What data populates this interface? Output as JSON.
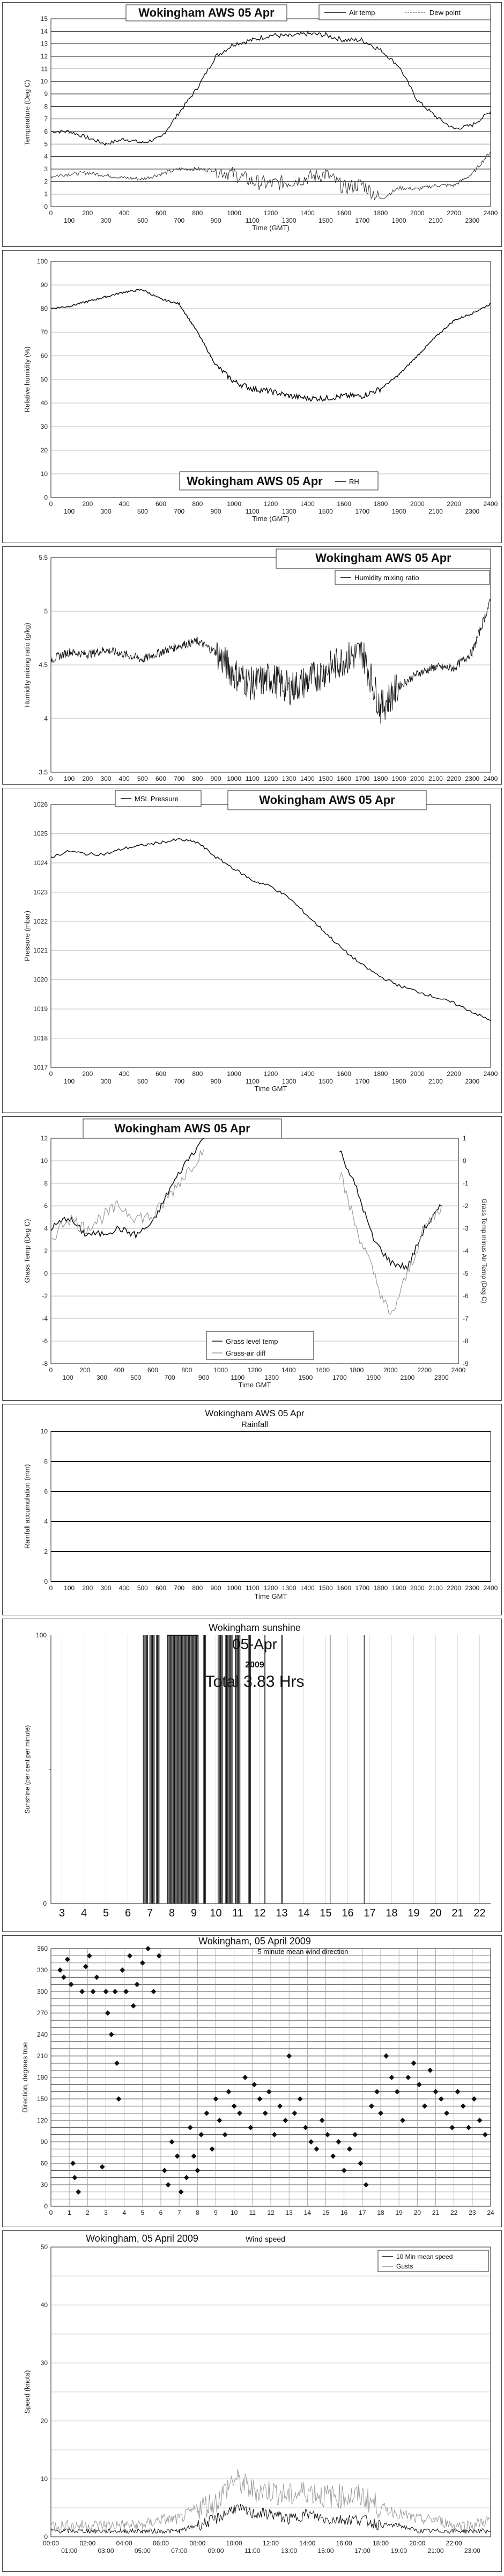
{
  "panels": {
    "temp": {
      "title": "Wokingham AWS 05 Apr",
      "legend": [
        "Air temp",
        "Dew point"
      ],
      "ylabel": "Temperature (Deg C)",
      "xlabel": "Time (GMT)"
    },
    "rh": {
      "title": "Wokingham AWS 05 Apr",
      "legend": [
        "RH"
      ],
      "ylabel": "Relative humidity (%)",
      "xlabel": "Time (GMT)"
    },
    "mix": {
      "title": "Wokingham AWS 05 Apr",
      "legend": [
        "Humidity mixing ratio"
      ],
      "ylabel": "Humidity mixing ratio (g/kg)",
      "xlabel": ""
    },
    "pres": {
      "title": "Wokingham AWS 05 Apr",
      "legend": [
        "MSL Pressure"
      ],
      "ylabel": "Pressure (mbar)",
      "xlabel": "Time GMT"
    },
    "grass": {
      "title": "Wokingham AWS 05 Apr",
      "legend": [
        "Grass level temp",
        "Grass-air diff"
      ],
      "ylabel": "Grass Temp (Deg C)",
      "ylabel2": "Grass Temp minus Air Temp (Deg C)",
      "xlabel": "Time GMT"
    },
    "rain": {
      "title": "Wokingham AWS 05 Apr",
      "subtitle": "Rainfall",
      "ylabel": "Rainfall accumulation (mm)",
      "xlabel": "Time GMT"
    },
    "sun": {
      "title": "Wokingham sunshine",
      "date": "05-Apr",
      "year": "2009",
      "total": "Total 3.83 Hrs",
      "ylabel": "Sunshine (per cent per minute)",
      "xlabel": ""
    },
    "wdir": {
      "title": "Wokingham,  05 April 2009",
      "subtitle": "5 minute mean wind direction",
      "ylabel": "Direction, degrees true",
      "xlabel": ""
    },
    "wspd": {
      "title": "Wokingham,  05 April 2009",
      "subtitle": "Wind speed",
      "legend": [
        "10 Min mean speed",
        "Gusts"
      ],
      "ylabel": "Speed (knots)",
      "xlabel": ""
    }
  },
  "chart_data": [
    {
      "type": "line",
      "title": "Wokingham AWS 05 Apr",
      "xlabel": "Time (GMT)",
      "ylabel": "Temperature (Deg C)",
      "xlim": [
        0,
        2400
      ],
      "ylim": [
        0,
        15
      ],
      "xticks": [
        "100",
        "300",
        "500",
        "700",
        "900",
        "1100",
        "1300",
        "1500",
        "1700",
        "1900",
        "2100",
        "2300",
        "0",
        "200",
        "400",
        "600",
        "800",
        "1000",
        "1200",
        "1400",
        "1600",
        "1800",
        "2000",
        "2200",
        "2400"
      ],
      "x": [
        0,
        100,
        200,
        300,
        400,
        500,
        600,
        700,
        800,
        900,
        1000,
        1100,
        1200,
        1300,
        1400,
        1500,
        1600,
        1700,
        1800,
        1900,
        2000,
        2100,
        2200,
        2300,
        2400
      ],
      "series": [
        {
          "name": "Air temp",
          "values": [
            6,
            6,
            5.5,
            5,
            5.4,
            5.1,
            5.5,
            7.5,
            9.5,
            12,
            13,
            13.3,
            13.7,
            13.6,
            13.8,
            13.7,
            13.3,
            13.3,
            12.5,
            11.2,
            8.5,
            7.2,
            6.2,
            6.5,
            7.6
          ]
        },
        {
          "name": "Dew point",
          "values": [
            2.4,
            2.6,
            2.7,
            2.5,
            2.3,
            2.2,
            2.6,
            3.0,
            3.0,
            2.9,
            2.6,
            2.0,
            1.8,
            2.0,
            2.3,
            2.6,
            1.5,
            1.8,
            0.6,
            1.5,
            1.4,
            1.7,
            1.7,
            2.6,
            4.4
          ]
        }
      ]
    },
    {
      "type": "line",
      "title": "Wokingham AWS 05 Apr",
      "xlabel": "Time (GMT)",
      "ylabel": "Relative humidity (%)",
      "xlim": [
        0,
        2400
      ],
      "ylim": [
        0,
        100
      ],
      "x": [
        0,
        100,
        200,
        300,
        400,
        500,
        600,
        700,
        800,
        900,
        1000,
        1100,
        1200,
        1300,
        1400,
        1500,
        1600,
        1700,
        1800,
        1900,
        2000,
        2100,
        2200,
        2300,
        2400
      ],
      "series": [
        {
          "name": "RH",
          "values": [
            80,
            81,
            83,
            85,
            87,
            88,
            84,
            82,
            70,
            56,
            49,
            46,
            45,
            43,
            42,
            42,
            43,
            43,
            46,
            52,
            60,
            68,
            75,
            78,
            82
          ]
        }
      ]
    },
    {
      "type": "line",
      "title": "Wokingham AWS 05 Apr",
      "ylabel": "Humidity mixing ratio (g/kg)",
      "xlim": [
        0,
        2400
      ],
      "ylim": [
        3.5,
        5.5
      ],
      "x": [
        0,
        100,
        200,
        300,
        400,
        500,
        600,
        700,
        800,
        900,
        1000,
        1100,
        1200,
        1300,
        1400,
        1500,
        1600,
        1700,
        1800,
        1900,
        2000,
        2100,
        2200,
        2300,
        2400
      ],
      "series": [
        {
          "name": "Humidity mixing ratio",
          "values": [
            4.55,
            4.62,
            4.6,
            4.64,
            4.6,
            4.55,
            4.62,
            4.68,
            4.72,
            4.62,
            4.42,
            4.32,
            4.38,
            4.28,
            4.35,
            4.45,
            4.55,
            4.62,
            4.1,
            4.3,
            4.42,
            4.48,
            4.47,
            4.62,
            5.1
          ]
        }
      ]
    },
    {
      "type": "line",
      "title": "Wokingham AWS 05 Apr",
      "xlabel": "Time GMT",
      "ylabel": "Pressure (mbar)",
      "xlim": [
        0,
        2400
      ],
      "ylim": [
        1017,
        1026
      ],
      "x": [
        0,
        100,
        200,
        300,
        400,
        500,
        600,
        700,
        800,
        900,
        1000,
        1100,
        1200,
        1300,
        1400,
        1500,
        1600,
        1700,
        1800,
        1900,
        2000,
        2100,
        2200,
        2300,
        2400
      ],
      "series": [
        {
          "name": "MSL Pressure",
          "values": [
            1024.2,
            1024.4,
            1024.3,
            1024.3,
            1024.5,
            1024.6,
            1024.7,
            1024.8,
            1024.7,
            1024.2,
            1023.8,
            1023.4,
            1023.2,
            1022.8,
            1022.2,
            1021.6,
            1021.0,
            1020.5,
            1020.1,
            1019.8,
            1019.6,
            1019.4,
            1019.2,
            1018.9,
            1018.6
          ]
        }
      ]
    },
    {
      "type": "line",
      "title": "Wokingham AWS 05 Apr",
      "xlabel": "Time GMT",
      "ylabel": "Grass Temp (Deg C)",
      "ylabel2": "Grass Temp minus Air Temp (Deg C)",
      "xlim": [
        0,
        2400
      ],
      "ylim": [
        -8,
        12
      ],
      "ylim2": [
        -9,
        1
      ],
      "x": [
        0,
        100,
        200,
        300,
        400,
        500,
        600,
        700,
        800,
        900,
        1700,
        1800,
        1900,
        2000,
        2100,
        2200,
        2300
      ],
      "series": [
        {
          "name": "Grass level temp",
          "values": [
            4,
            5,
            3.5,
            3.5,
            4,
            3.4,
            4.5,
            7.5,
            10,
            12,
            11,
            7.5,
            3,
            1,
            0.5,
            4,
            6
          ]
        },
        {
          "name": "Grass-air diff",
          "values": [
            -3.5,
            -2.5,
            -3,
            -2.5,
            -2,
            -2.5,
            -2.5,
            -1.5,
            -0.5,
            0.5,
            -0.5,
            -3,
            -5,
            -7,
            -5,
            -3,
            -2
          ]
        }
      ]
    },
    {
      "type": "line",
      "title": "Wokingham AWS 05 Apr",
      "subtitle": "Rainfall",
      "xlabel": "Time GMT",
      "ylabel": "Rainfall accumulation (mm)",
      "xlim": [
        0,
        2400
      ],
      "ylim": [
        0,
        10
      ],
      "x": [
        0,
        2400
      ],
      "series": [
        {
          "values": [
            0,
            0
          ]
        }
      ]
    },
    {
      "type": "bar",
      "title": "Wokingham sunshine",
      "subtitle": "05-Apr",
      "ylabel": "Sunshine (per cent per minute)",
      "annotations": [
        "2009",
        "Total 3.83 Hrs"
      ],
      "xlim": [
        2.5,
        22.5
      ],
      "ylim": [
        0,
        100
      ],
      "xticks": [
        3,
        4,
        5,
        6,
        7,
        8,
        9,
        10,
        11,
        12,
        13,
        14,
        15,
        16,
        17,
        18,
        19,
        20,
        21,
        22
      ],
      "sunny_intervals": [
        [
          6.7,
          6.9
        ],
        [
          7.0,
          7.2
        ],
        [
          7.3,
          7.45
        ],
        [
          7.8,
          9.2
        ],
        [
          9.45,
          9.55
        ],
        [
          10.1,
          10.3
        ],
        [
          10.45,
          10.8
        ],
        [
          10.9,
          11.1
        ],
        [
          11.5,
          11.6
        ],
        [
          12.2,
          12.25
        ],
        [
          13.0,
          13.05
        ],
        [
          15.2,
          15.22
        ],
        [
          16.75,
          16.78
        ]
      ]
    },
    {
      "type": "scatter",
      "title": "Wokingham,  05 April 2009",
      "subtitle": "5 minute mean wind direction",
      "ylabel": "Direction, degrees true",
      "xlim": [
        0,
        24
      ],
      "ylim": [
        0,
        360
      ],
      "xticks": [
        0,
        1,
        2,
        3,
        4,
        5,
        6,
        7,
        8,
        9,
        10,
        11,
        12,
        13,
        14,
        15,
        16,
        17,
        18,
        19,
        20,
        21,
        22,
        23,
        24
      ],
      "yticks": [
        0,
        30,
        60,
        90,
        120,
        150,
        180,
        210,
        240,
        270,
        300,
        330,
        360
      ],
      "points": [
        [
          0.5,
          330
        ],
        [
          0.7,
          320
        ],
        [
          0.9,
          345
        ],
        [
          1.1,
          310
        ],
        [
          1.2,
          60
        ],
        [
          1.3,
          40
        ],
        [
          1.5,
          20
        ],
        [
          1.7,
          300
        ],
        [
          1.9,
          335
        ],
        [
          2.1,
          350
        ],
        [
          2.3,
          300
        ],
        [
          2.5,
          320
        ],
        [
          2.8,
          55
        ],
        [
          3.0,
          300
        ],
        [
          3.1,
          270
        ],
        [
          3.3,
          240
        ],
        [
          3.5,
          300
        ],
        [
          3.6,
          200
        ],
        [
          3.7,
          150
        ],
        [
          3.9,
          330
        ],
        [
          4.1,
          300
        ],
        [
          4.3,
          350
        ],
        [
          4.5,
          280
        ],
        [
          4.7,
          310
        ],
        [
          5.0,
          340
        ],
        [
          5.3,
          360
        ],
        [
          5.6,
          300
        ],
        [
          5.9,
          350
        ],
        [
          6.2,
          50
        ],
        [
          6.4,
          30
        ],
        [
          6.6,
          90
        ],
        [
          6.9,
          70
        ],
        [
          7.1,
          20
        ],
        [
          7.4,
          40
        ],
        [
          7.6,
          110
        ],
        [
          7.8,
          70
        ],
        [
          8.0,
          50
        ],
        [
          8.2,
          100
        ],
        [
          8.5,
          130
        ],
        [
          8.8,
          80
        ],
        [
          9.0,
          150
        ],
        [
          9.2,
          120
        ],
        [
          9.5,
          100
        ],
        [
          9.7,
          160
        ],
        [
          10.0,
          140
        ],
        [
          10.3,
          130
        ],
        [
          10.6,
          180
        ],
        [
          10.9,
          110
        ],
        [
          11.1,
          170
        ],
        [
          11.4,
          150
        ],
        [
          11.7,
          130
        ],
        [
          11.9,
          160
        ],
        [
          12.2,
          100
        ],
        [
          12.5,
          140
        ],
        [
          12.8,
          120
        ],
        [
          13.0,
          210
        ],
        [
          13.3,
          130
        ],
        [
          13.6,
          150
        ],
        [
          13.9,
          110
        ],
        [
          14.2,
          90
        ],
        [
          14.5,
          80
        ],
        [
          14.8,
          120
        ],
        [
          15.1,
          100
        ],
        [
          15.4,
          70
        ],
        [
          15.7,
          90
        ],
        [
          16.0,
          50
        ],
        [
          16.3,
          80
        ],
        [
          16.6,
          100
        ],
        [
          16.9,
          60
        ],
        [
          17.2,
          30
        ],
        [
          17.5,
          140
        ],
        [
          17.8,
          160
        ],
        [
          18.0,
          130
        ],
        [
          18.3,
          210
        ],
        [
          18.6,
          180
        ],
        [
          18.9,
          160
        ],
        [
          19.2,
          120
        ],
        [
          19.5,
          180
        ],
        [
          19.8,
          200
        ],
        [
          20.1,
          170
        ],
        [
          20.4,
          140
        ],
        [
          20.7,
          190
        ],
        [
          21.0,
          160
        ],
        [
          21.3,
          150
        ],
        [
          21.6,
          130
        ],
        [
          21.9,
          110
        ],
        [
          22.2,
          160
        ],
        [
          22.5,
          140
        ],
        [
          22.8,
          110
        ],
        [
          23.1,
          150
        ],
        [
          23.4,
          120
        ],
        [
          23.7,
          100
        ]
      ]
    },
    {
      "type": "line",
      "title": "Wokingham,  05 April 2009",
      "subtitle": "Wind speed",
      "ylabel": "Speed (knots)",
      "xlim": [
        0,
        24
      ],
      "ylim": [
        0,
        50
      ],
      "xticks": [
        "00:00",
        "01:00",
        "02:00",
        "03:00",
        "04:00",
        "05:00",
        "06:00",
        "07:00",
        "08:00",
        "09:00",
        "10:00",
        "11:00",
        "12:00",
        "13:00",
        "14:00",
        "15:00",
        "16:00",
        "17:00",
        "18:00",
        "19:00",
        "20:00",
        "21:00",
        "22:00",
        "23:00"
      ],
      "x": [
        0,
        1,
        2,
        3,
        4,
        5,
        6,
        7,
        8,
        9,
        10,
        11,
        12,
        13,
        14,
        15,
        16,
        17,
        18,
        19,
        20,
        21,
        22,
        23,
        24
      ],
      "series": [
        {
          "name": "10 Min mean speed",
          "values": [
            1,
            1,
            1,
            1,
            1,
            1,
            1,
            1,
            2,
            3,
            5,
            4,
            4,
            3,
            4,
            3,
            3,
            3,
            2,
            2,
            1,
            1,
            1,
            1,
            1
          ]
        },
        {
          "name": "Gusts",
          "values": [
            2,
            2,
            2,
            2,
            2,
            2,
            3,
            3,
            5,
            6,
            10,
            8,
            8,
            7,
            8,
            7,
            7,
            7,
            5,
            4,
            3,
            3,
            2,
            2,
            3
          ]
        }
      ]
    }
  ]
}
